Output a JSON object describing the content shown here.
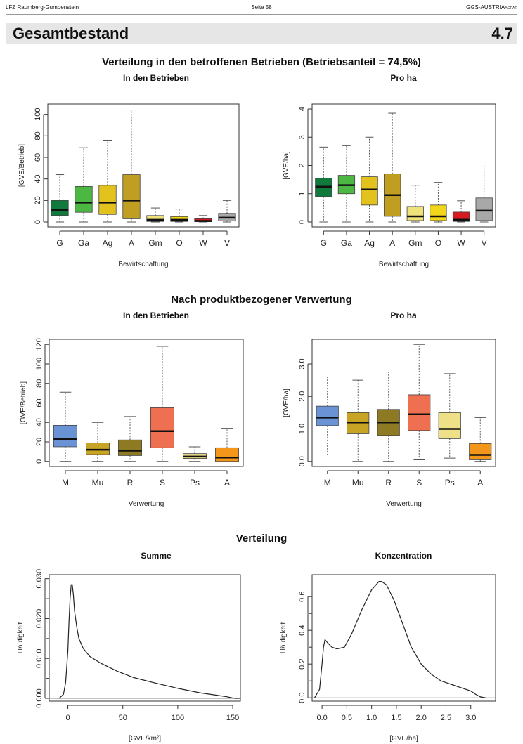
{
  "header": {
    "left": "LFZ Raumberg-Gumpenstein",
    "center": "Seite 58",
    "right_main": "GGS-AUSTRIA",
    "right_sub": "AGRAR"
  },
  "banner": {
    "title": "Gesamtbestand",
    "number": "4.7"
  },
  "sections": {
    "s1": "Verteilung in den betroffenen Betrieben (Betriebsanteil = 74,5%)",
    "s2": "Nach produktbezogener Verwertung",
    "s3": "Verteilung"
  },
  "subtitles": {
    "p1": "In den Betrieben",
    "p2": "Pro ha",
    "p3": "In den Betrieben",
    "p4": "Pro ha",
    "p5": "Summe",
    "p6": "Konzentration"
  },
  "colors": {
    "G": "#0f7a3c",
    "Ga": "#4cb843",
    "Ag": "#e3c21e",
    "A1": "#bf9e22",
    "Gm": "#efe27a",
    "O": "#f3d61a",
    "W": "#d81a20",
    "V": "#a8a8a8",
    "M": "#6a93d6",
    "Mu": "#c7a424",
    "R": "#8d7a23",
    "S": "#ef7050",
    "Ps": "#ede087",
    "A2": "#f3961a"
  },
  "chart_data": [
    {
      "type": "box",
      "id": "p1",
      "title": "In den Betrieben",
      "xlabel": "Bewirtschaftung",
      "ylabel": "[GVE/Betrieb]",
      "ylim": [
        0,
        105
      ],
      "yticks": [
        "0",
        "20",
        "40",
        "60",
        "80",
        "100"
      ],
      "categories": [
        "G",
        "Ga",
        "Ag",
        "A",
        "Gm",
        "O",
        "W",
        "V"
      ],
      "stats": [
        {
          "min": 0,
          "q1": 6,
          "med": 11,
          "q3": 20,
          "max": 44
        },
        {
          "min": 0,
          "q1": 9,
          "med": 18,
          "q3": 33,
          "max": 69
        },
        {
          "min": 0,
          "q1": 7,
          "med": 18,
          "q3": 34,
          "max": 76
        },
        {
          "min": 0,
          "q1": 3,
          "med": 20,
          "q3": 44,
          "max": 104
        },
        {
          "min": 0,
          "q1": 0.5,
          "med": 2,
          "q3": 6,
          "max": 13
        },
        {
          "min": 0,
          "q1": 0.5,
          "med": 2,
          "q3": 5,
          "max": 12
        },
        {
          "min": 0,
          "q1": 0.3,
          "med": 1,
          "q3": 3,
          "max": 6
        },
        {
          "min": 0,
          "q1": 1,
          "med": 4,
          "q3": 8,
          "max": 20
        }
      ]
    },
    {
      "type": "box",
      "id": "p2",
      "title": "Pro ha",
      "xlabel": "Bewirtschaftung",
      "ylabel": "[GVE/ha]",
      "ylim": [
        0,
        4
      ],
      "yticks": [
        "0",
        "1",
        "2",
        "3",
        "4"
      ],
      "categories": [
        "G",
        "Ga",
        "Ag",
        "A",
        "Gm",
        "O",
        "W",
        "V"
      ],
      "stats": [
        {
          "min": 0,
          "q1": 0.9,
          "med": 1.25,
          "q3": 1.55,
          "max": 2.65
        },
        {
          "min": 0,
          "q1": 1.0,
          "med": 1.3,
          "q3": 1.65,
          "max": 2.7
        },
        {
          "min": 0,
          "q1": 0.6,
          "med": 1.15,
          "q3": 1.6,
          "max": 3.0
        },
        {
          "min": 0,
          "q1": 0.2,
          "med": 0.95,
          "q3": 1.7,
          "max": 3.85
        },
        {
          "min": 0,
          "q1": 0.05,
          "med": 0.2,
          "q3": 0.55,
          "max": 1.3
        },
        {
          "min": 0,
          "q1": 0.05,
          "med": 0.2,
          "q3": 0.6,
          "max": 1.4
        },
        {
          "min": 0,
          "q1": 0.02,
          "med": 0.08,
          "q3": 0.35,
          "max": 0.75
        },
        {
          "min": 0,
          "q1": 0.05,
          "med": 0.4,
          "q3": 0.85,
          "max": 2.05
        }
      ]
    },
    {
      "type": "box",
      "id": "p3",
      "title": "In den Betrieben",
      "xlabel": "Verwertung",
      "ylabel": "[GVE/Betrieb]",
      "ylim": [
        0,
        120
      ],
      "yticks": [
        "0",
        "20",
        "40",
        "60",
        "80",
        "100",
        "120"
      ],
      "categories": [
        "M",
        "Mu",
        "R",
        "S",
        "Ps",
        "A"
      ],
      "stats": [
        {
          "min": 0,
          "q1": 15,
          "med": 23,
          "q3": 37,
          "max": 71
        },
        {
          "min": 0,
          "q1": 7,
          "med": 12,
          "q3": 19,
          "max": 40
        },
        {
          "min": 0,
          "q1": 6,
          "med": 11,
          "q3": 22,
          "max": 46
        },
        {
          "min": 0,
          "q1": 14,
          "med": 31,
          "q3": 55,
          "max": 118
        },
        {
          "min": 0,
          "q1": 3,
          "med": 5,
          "q3": 8,
          "max": 15
        },
        {
          "min": 0,
          "q1": 0,
          "med": 4,
          "q3": 14,
          "max": 34
        }
      ]
    },
    {
      "type": "box",
      "id": "p4",
      "title": "Pro ha",
      "xlabel": "Verwertung",
      "ylabel": "[GVE/ha]",
      "ylim": [
        0,
        3.6
      ],
      "yticks": [
        "0.0",
        "1.0",
        "2.0",
        "3.0"
      ],
      "categories": [
        "M",
        "Mu",
        "R",
        "S",
        "Ps",
        "A"
      ],
      "stats": [
        {
          "min": 0.2,
          "q1": 1.1,
          "med": 1.35,
          "q3": 1.7,
          "max": 2.6
        },
        {
          "min": 0.0,
          "q1": 0.85,
          "med": 1.2,
          "q3": 1.5,
          "max": 2.5
        },
        {
          "min": 0.0,
          "q1": 0.8,
          "med": 1.2,
          "q3": 1.6,
          "max": 2.75
        },
        {
          "min": 0.05,
          "q1": 0.95,
          "med": 1.45,
          "q3": 2.05,
          "max": 3.6
        },
        {
          "min": 0.1,
          "q1": 0.7,
          "med": 1.0,
          "q3": 1.5,
          "max": 2.7
        },
        {
          "min": 0.0,
          "q1": 0.05,
          "med": 0.2,
          "q3": 0.55,
          "max": 1.35
        }
      ]
    },
    {
      "type": "line",
      "id": "p5",
      "title": "Summe",
      "xlabel": "[GVE/km²]",
      "ylabel": "Häufigkeit",
      "xlim": [
        -17,
        157
      ],
      "ylim": [
        -0.0007,
        0.031
      ],
      "xticks": [
        0,
        50,
        100,
        150
      ],
      "xticklabels": [
        "0",
        "50",
        "100",
        "150"
      ],
      "yticks": [
        0,
        0.01,
        0.02,
        0.03
      ],
      "yticklabels": [
        "0.000",
        "0.010",
        "0.020",
        "0.030"
      ],
      "x": [
        -8,
        -4,
        -2,
        0,
        1,
        2,
        3,
        4,
        5,
        6,
        8,
        10,
        14,
        20,
        30,
        45,
        60,
        80,
        100,
        120,
        135,
        145,
        150,
        152,
        157
      ],
      "y": [
        0,
        0.001,
        0.004,
        0.012,
        0.019,
        0.025,
        0.0285,
        0.0285,
        0.026,
        0.022,
        0.018,
        0.015,
        0.0125,
        0.0105,
        0.0088,
        0.0068,
        0.0052,
        0.0038,
        0.0025,
        0.0014,
        0.0008,
        0.0004,
        0.0001,
        0,
        0
      ]
    },
    {
      "type": "line",
      "id": "p6",
      "title": "Konzentration",
      "xlabel": "[GVE/ha]",
      "ylabel": "Häufigkeit",
      "xlim": [
        -0.2,
        3.5
      ],
      "ylim": [
        -0.02,
        0.73
      ],
      "xticks": [
        0,
        0.5,
        1,
        1.5,
        2,
        2.5,
        3
      ],
      "xticklabels": [
        "0.0",
        "0.5",
        "1.0",
        "1.5",
        "2.0",
        "2.5",
        "3.0"
      ],
      "yticks": [
        0,
        0.2,
        0.4,
        0.6
      ],
      "yticklabels": [
        "0.0",
        "0.2",
        "0.4",
        "0.6"
      ],
      "x": [
        -0.15,
        -0.05,
        0,
        0.03,
        0.06,
        0.1,
        0.2,
        0.3,
        0.45,
        0.6,
        0.8,
        1.0,
        1.15,
        1.2,
        1.3,
        1.45,
        1.6,
        1.8,
        2.0,
        2.2,
        2.4,
        2.6,
        2.8,
        3.0,
        3.1,
        3.2,
        3.3
      ],
      "y": [
        0,
        0.05,
        0.2,
        0.3,
        0.345,
        0.33,
        0.3,
        0.29,
        0.3,
        0.38,
        0.52,
        0.64,
        0.69,
        0.69,
        0.67,
        0.58,
        0.46,
        0.3,
        0.2,
        0.14,
        0.1,
        0.08,
        0.06,
        0.04,
        0.02,
        0.005,
        0
      ]
    }
  ]
}
